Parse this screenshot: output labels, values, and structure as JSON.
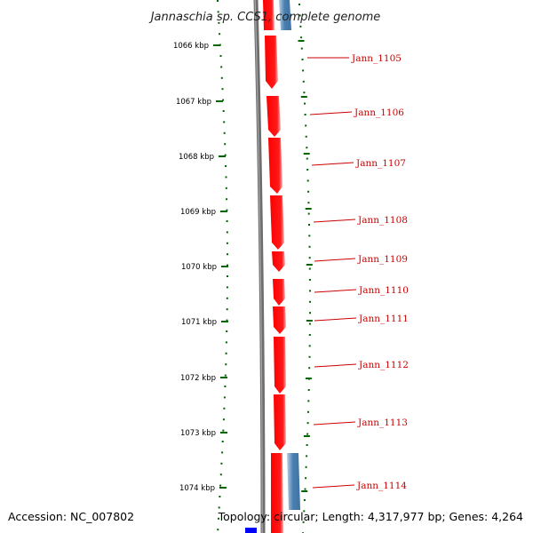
{
  "title": "Jannaschia sp. CCS1, complete genome",
  "accession": "Accession: NC_007802",
  "topology": "Topology: circular; Length: 4,317,977 bp; Genes: 4,264",
  "colors": {
    "forward_gene": "#ff0000",
    "reverse_gene": "#4682b4",
    "backbone": "#7f7f7f",
    "tick": "#006400",
    "gene_label": "#cc0000",
    "marker": "#0000ff"
  },
  "kbp_ticks": [
    "1066 kbp",
    "1067 kbp",
    "1068 kbp",
    "1069 kbp",
    "1070 kbp",
    "1071 kbp",
    "1072 kbp",
    "1073 kbp",
    "1074 kbp"
  ],
  "genes": [
    {
      "label": "Jann_1105"
    },
    {
      "label": "Jann_1106"
    },
    {
      "label": "Jann_1107"
    },
    {
      "label": "Jann_1108"
    },
    {
      "label": "Jann_1109"
    },
    {
      "label": "Jann_1110"
    },
    {
      "label": "Jann_1111"
    },
    {
      "label": "Jann_1112"
    },
    {
      "label": "Jann_1113"
    },
    {
      "label": "Jann_1114"
    }
  ]
}
